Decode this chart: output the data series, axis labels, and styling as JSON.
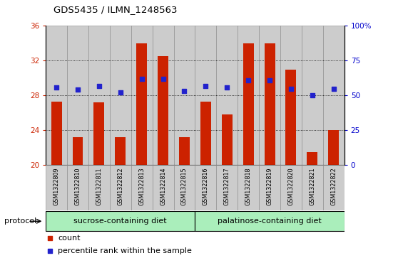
{
  "title": "GDS5435 / ILMN_1248563",
  "samples": [
    "GSM1322809",
    "GSM1322810",
    "GSM1322811",
    "GSM1322812",
    "GSM1322813",
    "GSM1322814",
    "GSM1322815",
    "GSM1322816",
    "GSM1322817",
    "GSM1322818",
    "GSM1322819",
    "GSM1322820",
    "GSM1322821",
    "GSM1322822"
  ],
  "counts": [
    27.3,
    23.2,
    27.2,
    23.2,
    34.0,
    32.5,
    23.2,
    27.3,
    25.8,
    34.0,
    34.0,
    31.0,
    21.5,
    24.0
  ],
  "percentile_ranks": [
    56,
    54,
    57,
    52,
    62,
    62,
    53,
    57,
    56,
    61,
    61,
    55,
    50,
    55
  ],
  "ylim_left": [
    20,
    36
  ],
  "yticks_left": [
    20,
    24,
    28,
    32,
    36
  ],
  "ylim_right": [
    0,
    100
  ],
  "yticks_right": [
    0,
    25,
    50,
    75,
    100
  ],
  "ytick_right_labels": [
    "0",
    "25",
    "50",
    "75",
    "100%"
  ],
  "bar_color": "#cc2200",
  "dot_color": "#2222cc",
  "bar_width": 0.5,
  "sucrose_count": 7,
  "sucrose_label": "sucrose-containing diet",
  "palatinose_label": "palatinose-containing diet",
  "protocol_label": "protocol",
  "group_color": "#aaeebb",
  "legend_count_label": "count",
  "legend_percentile_label": "percentile rank within the sample",
  "left_tick_color": "#cc2200",
  "right_tick_color": "#0000cc",
  "sample_bg_color": "#cccccc",
  "grid_linestyle": ":"
}
